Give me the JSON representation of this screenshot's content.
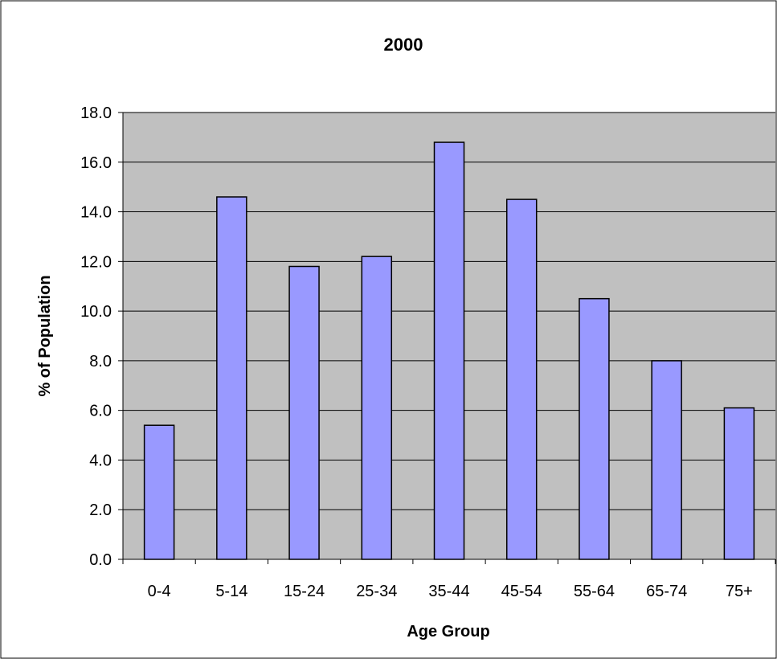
{
  "chart_data": {
    "type": "bar",
    "title": "2000",
    "xlabel": "Age Group",
    "ylabel": "% of Population",
    "categories": [
      "0-4",
      "5-14",
      "15-24",
      "25-34",
      "35-44",
      "45-54",
      "55-64",
      "65-74",
      "75+"
    ],
    "values": [
      5.4,
      14.6,
      11.8,
      12.2,
      16.8,
      14.5,
      10.5,
      8.0,
      6.1
    ],
    "ylim": [
      0,
      18
    ],
    "yticks": [
      "0.0",
      "2.0",
      "4.0",
      "6.0",
      "8.0",
      "10.0",
      "12.0",
      "14.0",
      "16.0",
      "18.0"
    ],
    "grid": true,
    "legend": "none",
    "colors": {
      "bar_fill": "#9999ff",
      "bar_stroke": "#000000",
      "plot_background": "#c0c0c0",
      "gridline": "#000000",
      "page_background": "#ffffff"
    }
  }
}
